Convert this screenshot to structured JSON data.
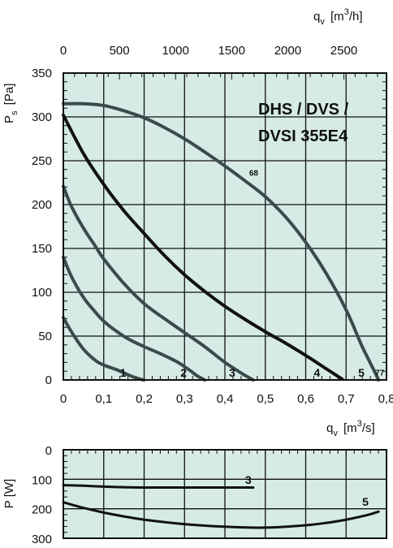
{
  "chart_data": [
    {
      "type": "line",
      "title": "DHS / DVS / DVSI 355E4",
      "title_lines": [
        "DHS / DVS /",
        "DVSI 355E4"
      ],
      "xlabel": "q_v [m³/s]",
      "xlabel_parts": {
        "q": "q",
        "sub": "v",
        "unit_pre": "[m",
        "sup": "3",
        "unit_post": "/s]"
      },
      "x2label": "q_v [m³/h]",
      "x2label_parts": {
        "q": "q",
        "sub": "v",
        "unit_pre": "[m",
        "sup": "3",
        "unit_post": "/h]"
      },
      "ylabel": "P_s [Pa]",
      "ylabel_parts": {
        "main": "P",
        "sub": "s",
        "unit": "[Pa]"
      },
      "xlim": [
        0,
        0.8
      ],
      "ylim": [
        0,
        350
      ],
      "x2lim": [
        0,
        2880
      ],
      "x_ticks": [
        "0",
        "0,1",
        "0,2",
        "0,3",
        "0,4",
        "0,5",
        "0,6",
        "0,7",
        "0,8"
      ],
      "x_tick_values": [
        0,
        0.1,
        0.2,
        0.3,
        0.4,
        0.5,
        0.6,
        0.7,
        0.8
      ],
      "x2_ticks": [
        "0",
        "500",
        "1000",
        "1500",
        "2000",
        "2500"
      ],
      "x2_tick_values": [
        0,
        500,
        1000,
        1500,
        2000,
        2500
      ],
      "y_ticks": [
        "0",
        "50",
        "100",
        "150",
        "200",
        "250",
        "300",
        "350"
      ],
      "y_tick_values": [
        0,
        50,
        100,
        150,
        200,
        250,
        300,
        350
      ],
      "background": "#d6ebe6",
      "grid": true,
      "series": [
        {
          "name": "1",
          "color": "#3b4a4d",
          "width": 4,
          "x": [
            0,
            0.02,
            0.05,
            0.08,
            0.1,
            0.13,
            0.15,
            0.17,
            0.19,
            0.2
          ],
          "y": [
            71,
            55,
            35,
            22,
            17,
            12,
            8,
            4,
            1,
            0
          ]
        },
        {
          "name": "2",
          "color": "#3b4a4d",
          "width": 4,
          "x": [
            0,
            0.02,
            0.05,
            0.08,
            0.1,
            0.13,
            0.16,
            0.2,
            0.24,
            0.28,
            0.31,
            0.33,
            0.35
          ],
          "y": [
            140,
            118,
            94,
            77,
            67,
            56,
            47,
            38,
            30,
            21,
            12,
            5,
            0
          ]
        },
        {
          "name": "3",
          "color": "#3b4a4d",
          "width": 4,
          "x": [
            0,
            0.02,
            0.05,
            0.08,
            0.1,
            0.15,
            0.2,
            0.25,
            0.3,
            0.35,
            0.4,
            0.44,
            0.47
          ],
          "y": [
            221,
            198,
            173,
            152,
            138,
            110,
            87,
            70,
            54,
            38,
            20,
            8,
            0
          ]
        },
        {
          "name": "4",
          "color": "#111111",
          "width": 4,
          "x": [
            0,
            0.05,
            0.1,
            0.15,
            0.2,
            0.25,
            0.3,
            0.35,
            0.4,
            0.45,
            0.5,
            0.55,
            0.6,
            0.65,
            0.69
          ],
          "y": [
            302,
            258,
            223,
            193,
            167,
            142,
            120,
            101,
            84,
            69,
            55,
            42,
            28,
            13,
            1
          ]
        },
        {
          "name": "5",
          "color": "#3b4a4d",
          "width": 4,
          "x": [
            0,
            0.05,
            0.1,
            0.15,
            0.2,
            0.25,
            0.3,
            0.35,
            0.4,
            0.45,
            0.5,
            0.55,
            0.6,
            0.65,
            0.7,
            0.74,
            0.77,
            0.78
          ],
          "y": [
            315,
            315,
            313,
            307,
            299,
            288,
            275,
            260,
            244,
            227,
            209,
            186,
            157,
            122,
            80,
            38,
            10,
            0
          ]
        }
      ],
      "annotations": [
        {
          "text": "1",
          "x": 0.14,
          "y": 2
        },
        {
          "text": "2",
          "x": 0.29,
          "y": 2
        },
        {
          "text": "3",
          "x": 0.41,
          "y": 2
        },
        {
          "text": "4",
          "x": 0.62,
          "y": 2
        },
        {
          "text": "5",
          "x": 0.73,
          "y": 2
        }
      ],
      "small_annotations": [
        {
          "text": "68",
          "x": 0.46,
          "y": 233
        },
        {
          "text": "77",
          "x": 0.772,
          "y": 5
        }
      ]
    },
    {
      "type": "line",
      "xlabel": "q_v [m³/s]",
      "xlabel_parts": {
        "q": "q",
        "sub": "v",
        "unit_pre": "[m",
        "sup": "3",
        "unit_post": "/s]"
      },
      "ylabel": "P [W]",
      "xlim": [
        0,
        0.8
      ],
      "ylim": [
        0,
        300
      ],
      "y_inverted": true,
      "y_ticks": [
        "0",
        "100",
        "200",
        "300"
      ],
      "y_tick_values": [
        0,
        100,
        200,
        300
      ],
      "background": "#d6ebe6",
      "grid": true,
      "series": [
        {
          "name": "3",
          "color": "#111111",
          "width": 3,
          "x": [
            0,
            0.05,
            0.1,
            0.15,
            0.2,
            0.3,
            0.4,
            0.47
          ],
          "y": [
            120,
            122,
            125,
            127,
            128,
            128,
            128,
            128
          ]
        },
        {
          "name": "5",
          "color": "#111111",
          "width": 3,
          "x": [
            0,
            0.05,
            0.1,
            0.15,
            0.2,
            0.3,
            0.4,
            0.5,
            0.6,
            0.65,
            0.7,
            0.75,
            0.78
          ],
          "y": [
            178,
            197,
            213,
            226,
            237,
            252,
            261,
            264,
            256,
            248,
            237,
            222,
            210
          ]
        }
      ],
      "annotations": [
        {
          "text": "3",
          "x": 0.45,
          "y": 115
        },
        {
          "text": "5",
          "x": 0.74,
          "y": 190
        }
      ]
    }
  ]
}
